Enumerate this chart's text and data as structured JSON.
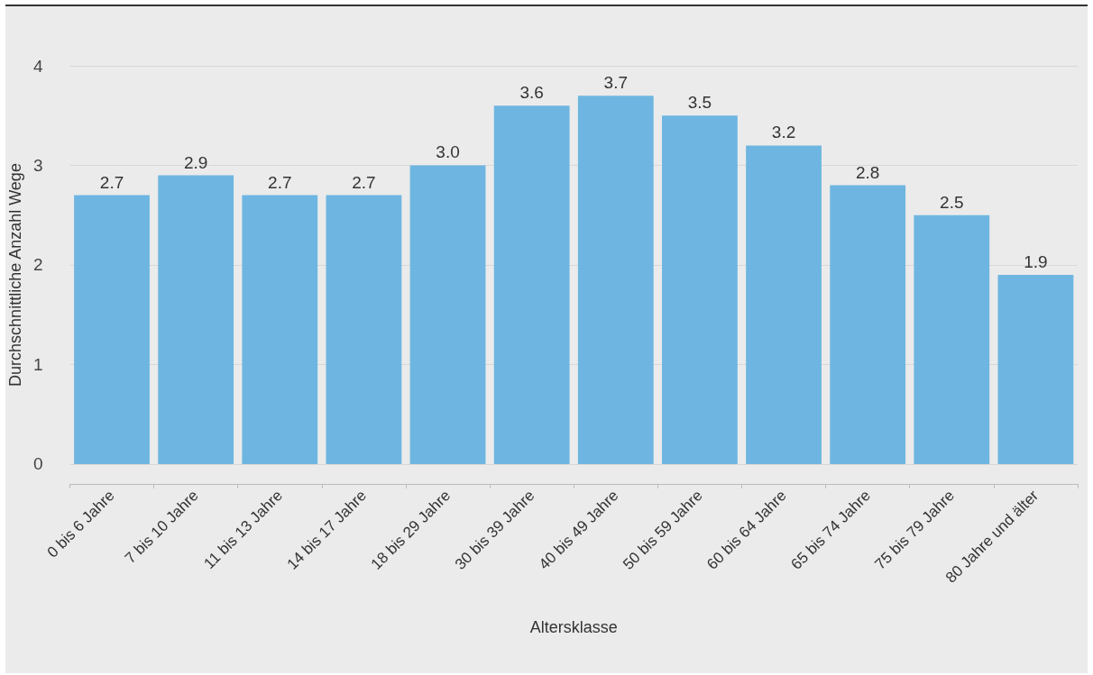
{
  "chart_data": {
    "type": "bar",
    "xlabel": "Altersklasse",
    "ylabel": "Durchschnittliche Anzahl Wege",
    "categories": [
      "0 bis 6 Jahre",
      "7 bis 10 Jahre",
      "11 bis 13 Jahre",
      "14 bis 17 Jahre",
      "18 bis 29 Jahre",
      "30 bis 39 Jahre",
      "40 bis 49 Jahre",
      "50 bis 59 Jahre",
      "60 bis 64 Jahre",
      "65 bis 74 Jahre",
      "75 bis 79 Jahre",
      "80 Jahre und älter"
    ],
    "values": [
      2.7,
      2.9,
      2.7,
      2.7,
      3.0,
      3.6,
      3.7,
      3.5,
      3.2,
      2.8,
      2.5,
      1.9
    ],
    "value_labels": [
      "2.7",
      "2.9",
      "2.7",
      "2.7",
      "3.0",
      "3.6",
      "3.7",
      "3.5",
      "3.2",
      "2.8",
      "2.5",
      "1.9"
    ],
    "color": "#6eb6e1",
    "ylim": [
      -0.2,
      4
    ],
    "yticks": [
      0,
      1,
      2,
      3,
      4
    ],
    "grid": "y"
  }
}
